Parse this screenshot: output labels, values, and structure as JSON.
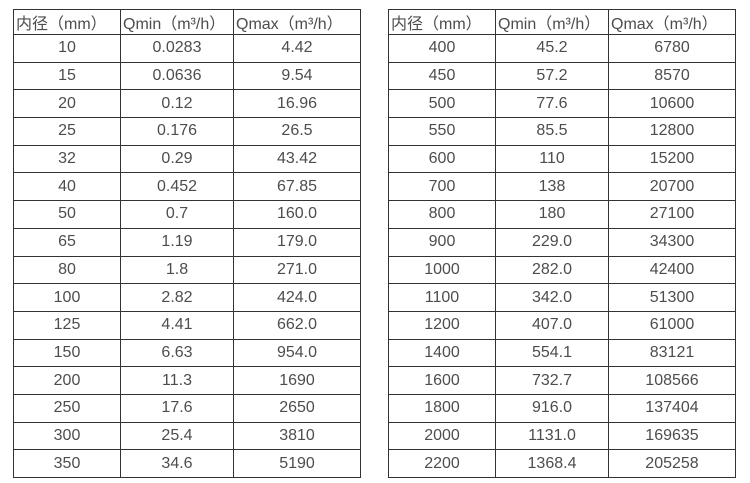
{
  "page": {
    "background_color": "#ffffff",
    "text_color": "#4d4d4d",
    "border_color": "#333333"
  },
  "tables": [
    {
      "title": "flow-table-dn10-350",
      "headers": [
        "内径（mm）",
        "Qmin（m³/h）",
        "Qmax（m³/h）"
      ],
      "rows": [
        [
          "10",
          "0.0283",
          "4.42"
        ],
        [
          "15",
          "0.0636",
          "9.54"
        ],
        [
          "20",
          "0.12",
          "16.96"
        ],
        [
          "25",
          "0.176",
          "26.5"
        ],
        [
          "32",
          "0.29",
          "43.42"
        ],
        [
          "40",
          "0.452",
          "67.85"
        ],
        [
          "50",
          "0.7",
          "160.0"
        ],
        [
          "65",
          "1.19",
          "179.0"
        ],
        [
          "80",
          "1.8",
          "271.0"
        ],
        [
          "100",
          "2.82",
          "424.0"
        ],
        [
          "125",
          "4.41",
          "662.0"
        ],
        [
          "150",
          "6.63",
          "954.0"
        ],
        [
          "200",
          "11.3",
          "1690"
        ],
        [
          "250",
          "17.6",
          "2650"
        ],
        [
          "300",
          "25.4",
          "3810"
        ],
        [
          "350",
          "34.6",
          "5190"
        ]
      ]
    },
    {
      "title": "flow-table-dn400-2200",
      "headers": [
        "内径（mm）",
        "Qmin（m³/h）",
        "Qmax（m³/h）"
      ],
      "rows": [
        [
          "400",
          "45.2",
          "6780"
        ],
        [
          "450",
          "57.2",
          "8570"
        ],
        [
          "500",
          "77.6",
          "10600"
        ],
        [
          "550",
          "85.5",
          "12800"
        ],
        [
          "600",
          "110",
          "15200"
        ],
        [
          "700",
          "138",
          "20700"
        ],
        [
          "800",
          "180",
          "27100"
        ],
        [
          "900",
          "229.0",
          "34300"
        ],
        [
          "1000",
          "282.0",
          "42400"
        ],
        [
          "1100",
          "342.0",
          "51300"
        ],
        [
          "1200",
          "407.0",
          "61000"
        ],
        [
          "1400",
          "554.1",
          "83121"
        ],
        [
          "1600",
          "732.7",
          "108566"
        ],
        [
          "1800",
          "916.0",
          "137404"
        ],
        [
          "2000",
          "1131.0",
          "169635"
        ],
        [
          "2200",
          "1368.4",
          "205258"
        ]
      ]
    }
  ]
}
